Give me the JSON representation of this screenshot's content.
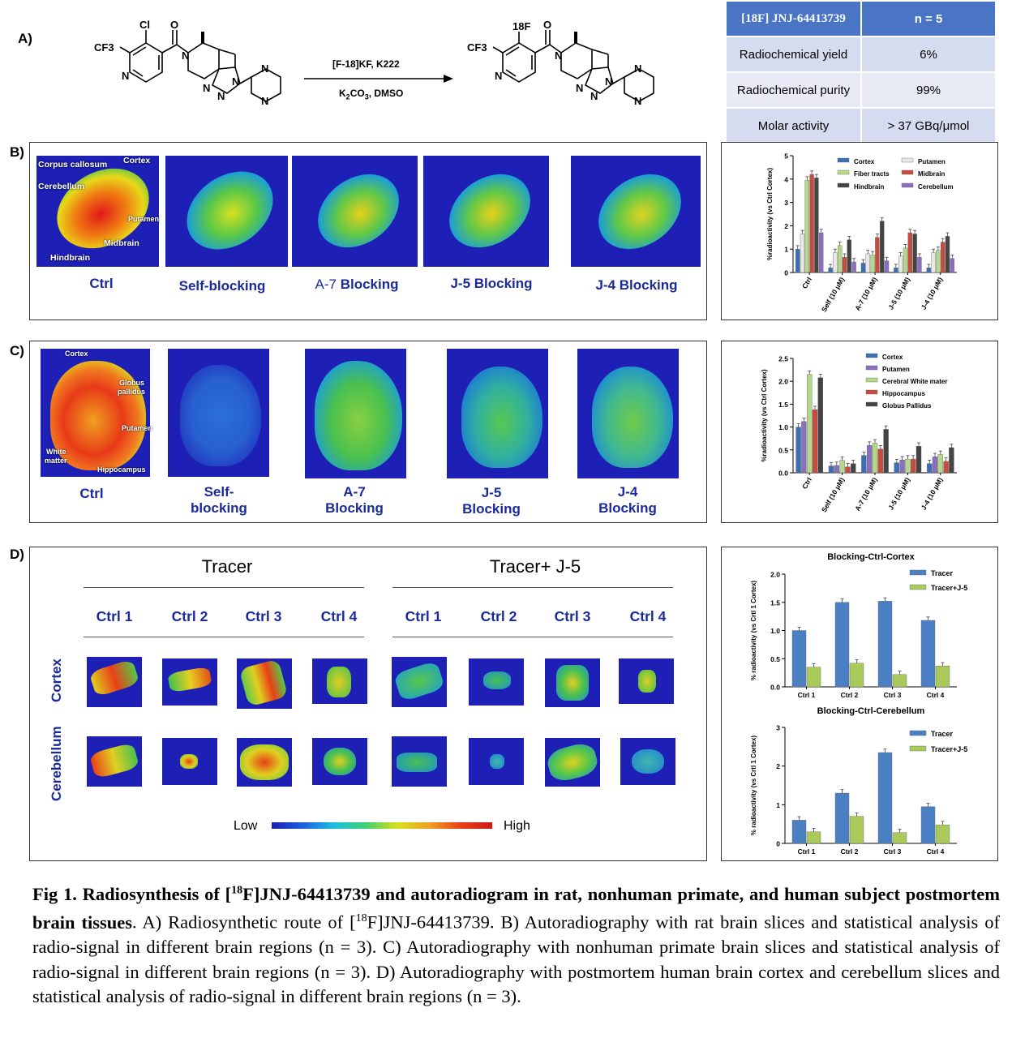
{
  "panelA": {
    "label": "A)",
    "reactant": {
      "substituent1": "Cl",
      "substituent2": "CF3",
      "n_atom": "N"
    },
    "product": {
      "substituent1": "18F",
      "substituent2": "CF3",
      "n_atom": "N"
    },
    "conditions_top": "[F-18]KF, K222",
    "conditions_bottom": "K2CO3, DMSO",
    "table": {
      "header": [
        "[18F] JNJ-64413739",
        "n = 5"
      ],
      "rows": [
        [
          "Radiochemical yield",
          "6%"
        ],
        [
          "Radiochemical purity",
          "99%"
        ],
        [
          "Molar activity",
          "> 37 GBq/μmol"
        ]
      ],
      "header_color": "#4a74c4",
      "row_color": "#d6dcef"
    }
  },
  "panelB": {
    "label": "B)",
    "captions": [
      "Ctrl",
      "Self-blocking",
      "A-7 Blocking",
      "J-5 Blocking",
      "J-4 Blocking"
    ],
    "caption_a7_prefix": "A-7",
    "caption_a7_suffix": "Blocking",
    "regions": [
      "Corpus callosum",
      "Cortex",
      "Cerebellum",
      "Putamen",
      "Midbrain",
      "Hindbrain"
    ]
  },
  "panelC": {
    "label": "C)",
    "captions": [
      "Ctrl",
      "Self-\nblocking",
      "A-7\nBlocking",
      "J-5\nBlocking",
      "J-4\nBlocking"
    ],
    "captions_l1": [
      "Ctrl",
      "Self-",
      "A-7",
      "J-5",
      "J-4"
    ],
    "captions_l2": [
      "",
      "blocking",
      "Blocking",
      "Blocking",
      "Blocking"
    ],
    "regions": [
      "Cortex",
      "Globus",
      "pallidus",
      "Putamen",
      "White",
      "matter",
      "Hippocampus"
    ]
  },
  "panelD": {
    "label": "D)",
    "group1": "Tracer",
    "group2": "Tracer+ J-5",
    "ctrls": [
      "Ctrl 1",
      "Ctrl 2",
      "Ctrl 3",
      "Ctrl 4",
      "Ctrl 1",
      "Ctrl 2",
      "Ctrl 3",
      "Ctrl 4"
    ],
    "rows": [
      "Cortex",
      "Cerebellum"
    ],
    "scale_low": "Low",
    "scale_high": "High"
  },
  "caption": {
    "bold1": "Fig 1. Radiosynthesis of [",
    "bold_sup": "18",
    "bold2": "F]JNJ-64413739 and autoradiogram in rat, nonhuman primate, and human subject postmortem brain tissues",
    "rest1": ". A) Radiosynthetic route of [",
    "rest_sup": "18",
    "rest2": "F]JNJ-64413739. B) Autoradiography with rat brain slices and statistical analysis of radio-signal in different brain regions (n = 3). C) Autoradiography with nonhuman primate brain slices and statistical analysis of radio-signal in different brain regions (n = 3). D) Autoradiography with postmortem human brain cortex and cerebellum slices and statistical analysis of radio-signal in different brain regions (n = 3)."
  },
  "chart_data": [
    {
      "type": "bar",
      "id": "chartB",
      "ylabel": "%radioactivity (vs Ctrl Cortex)",
      "ylim": [
        0,
        5
      ],
      "yticks": [
        0,
        1,
        2,
        3,
        4,
        5
      ],
      "categories": [
        "Ctrl",
        "Self (10 μM)",
        "A-7 (10 μM)",
        "J-5 (10 μM)",
        "J-4 (10 μM)"
      ],
      "legend_placement": "top-right",
      "series": [
        {
          "name": "Cortex",
          "color": "#3a6fb8",
          "values": [
            1.0,
            0.2,
            0.4,
            0.2,
            0.2
          ]
        },
        {
          "name": "Putamen",
          "color": "#e8e8e8",
          "values": [
            1.65,
            0.85,
            0.8,
            0.7,
            0.85
          ]
        },
        {
          "name": "Fiber tracts",
          "color": "#b5d98a",
          "values": [
            3.95,
            1.15,
            0.75,
            1.05,
            0.95
          ]
        },
        {
          "name": "Midbrain",
          "color": "#c94b3f",
          "values": [
            4.2,
            0.65,
            1.5,
            1.7,
            1.3
          ]
        },
        {
          "name": "Hindbrain",
          "color": "#444444",
          "values": [
            4.05,
            1.4,
            2.2,
            1.65,
            1.55
          ]
        },
        {
          "name": "Cerebellum",
          "color": "#8a6ec0",
          "values": [
            1.7,
            0.45,
            0.5,
            0.65,
            0.6
          ]
        }
      ]
    },
    {
      "type": "bar",
      "id": "chartC",
      "ylabel": "%radioactivity (vs Ctrl Cortex)",
      "ylim": [
        0,
        2.5
      ],
      "yticks": [
        0.0,
        0.5,
        1.0,
        1.5,
        2.0,
        2.5
      ],
      "categories": [
        "Ctrl",
        "Self (10 μM)",
        "A-7 (10 μM)",
        "J-5 (10 μM)",
        "J-4 (10 μM)"
      ],
      "legend_placement": "top-right",
      "series": [
        {
          "name": "Cortex",
          "color": "#3a6fb8",
          "values": [
            1.0,
            0.15,
            0.38,
            0.22,
            0.2
          ]
        },
        {
          "name": "Putamen",
          "color": "#8a6ec0",
          "values": [
            1.12,
            0.16,
            0.6,
            0.28,
            0.35
          ]
        },
        {
          "name": "Cerebral White mater",
          "color": "#b5d98a",
          "values": [
            2.15,
            0.27,
            0.65,
            0.3,
            0.4
          ]
        },
        {
          "name": "Hippocampus",
          "color": "#c94b3f",
          "values": [
            1.38,
            0.13,
            0.52,
            0.3,
            0.25
          ]
        },
        {
          "name": "Globus Pallidus",
          "color": "#444444",
          "values": [
            2.08,
            0.2,
            0.95,
            0.58,
            0.55
          ]
        }
      ]
    },
    {
      "type": "bar",
      "id": "chartD1",
      "title": "Blocking-Ctrl-Cortex",
      "ylabel": "% radioactivity (vs Crtl 1 Cortex)",
      "ylim": [
        0,
        2.0
      ],
      "yticks": [
        0.0,
        0.5,
        1.0,
        1.5,
        2.0
      ],
      "categories": [
        "Ctrl 1",
        "Ctrl 2",
        "Ctrl 3",
        "Ctrl 4"
      ],
      "legend_placement": "top-right",
      "series": [
        {
          "name": "Tracer",
          "color": "#4a7fc4",
          "values": [
            1.0,
            1.5,
            1.52,
            1.18
          ]
        },
        {
          "name": "Tracer+J-5",
          "color": "#a9c95a",
          "values": [
            0.35,
            0.42,
            0.22,
            0.37
          ]
        }
      ]
    },
    {
      "type": "bar",
      "id": "chartD2",
      "title": "Blocking-Ctrl-Cerebellum",
      "ylabel": "% radioactivity (vs Crtl 1 Cortex)",
      "ylim": [
        0,
        3
      ],
      "yticks": [
        0,
        1,
        2,
        3
      ],
      "categories": [
        "Ctrl 1",
        "Ctrl 2",
        "Ctrl 3",
        "Ctrl 4"
      ],
      "legend_placement": "top-right",
      "series": [
        {
          "name": "Tracer",
          "color": "#4a7fc4",
          "values": [
            0.6,
            1.3,
            2.35,
            0.95
          ]
        },
        {
          "name": "Tracer+J-5",
          "color": "#a9c95a",
          "values": [
            0.3,
            0.7,
            0.28,
            0.48
          ]
        }
      ]
    }
  ]
}
